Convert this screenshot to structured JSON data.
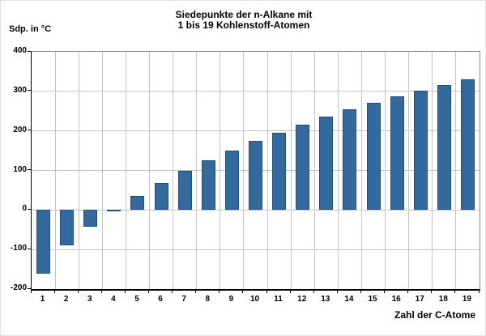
{
  "title": {
    "line1": "Siedepunkte der n-Alkane mit",
    "line2": "1 bis 19 Kohlenstoff-Atomen"
  },
  "chart_data": {
    "type": "bar",
    "title": "Siedepunkte der n-Alkane mit 1 bis 19 Kohlenstoff-Atomen",
    "ylabel": "Sdp. in °C",
    "xlabel": "Zahl der C-Atome",
    "categories": [
      1,
      2,
      3,
      4,
      5,
      6,
      7,
      8,
      9,
      10,
      11,
      12,
      13,
      14,
      15,
      16,
      17,
      18,
      19
    ],
    "values": [
      -161.5,
      -88.6,
      -42.1,
      -0.5,
      36.1,
      68.7,
      98.4,
      125.7,
      150.8,
      174.1,
      195.9,
      216.3,
      235.4,
      253.7,
      270.6,
      287.0,
      301.8,
      316.1,
      329.7
    ],
    "ylim": [
      -200,
      400
    ],
    "ytick_interval": 100,
    "grid": true,
    "legend": false
  },
  "colors": {
    "bar_fill": "#34699E",
    "bar_border": "#1F4E79",
    "gridline": "#C3C3C3",
    "axis": "#000000",
    "plot_border": "#8C8C8C",
    "background": "#FFFFFF"
  }
}
